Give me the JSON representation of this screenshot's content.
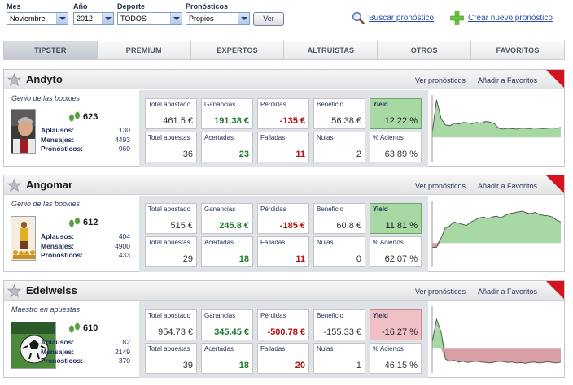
{
  "filters": {
    "mes": {
      "label": "Mes",
      "value": "Noviembre"
    },
    "ano": {
      "label": "Año",
      "value": "2012"
    },
    "deporte": {
      "label": "Deporte",
      "value": "TODOS"
    },
    "pronosticos": {
      "label": "Pronósticos",
      "value": "Propios"
    },
    "ver_label": "Ver"
  },
  "actions": {
    "buscar": "Buscar pronóstico",
    "crear": "Crear nuevo pronóstico"
  },
  "tabs": [
    "TIPSTER",
    "PREMIUM",
    "EXPERTOS",
    "ALTRUISTAS",
    "OTROS",
    "FAVORITOS"
  ],
  "active_tab": "TIPSTER",
  "card_links": {
    "ver": "Ver pronósticos",
    "fav": "Añadir a Favoritos"
  },
  "stat_labels": {
    "total_apostado": "Total apostado",
    "ganancias": "Ganancias",
    "perdidas": "Pérdidas",
    "beneficio": "Beneficio",
    "yield": "Yield",
    "total_apuestas": "Total apuestas",
    "acertadas": "Acertadas",
    "falladas": "Falladas",
    "nulas": "Nulas",
    "aciertos": "% Aciertos"
  },
  "mini_labels": {
    "aplausos": "Aplausos:",
    "mensajes": "Mensajes:",
    "pronosticos": "Pronósticos:"
  },
  "colors": {
    "positive": "#1d7a30",
    "negative": "#b01010",
    "yield_pos_bg": "#a8d8a4",
    "yield_neg_bg": "#f0c0c4",
    "corner_red": "#d4141c"
  },
  "tipsters": [
    {
      "name": "Andyto",
      "tagline": "Genio de las bookies",
      "score": "623",
      "aplausos": "130",
      "mensajes": "4493",
      "pronosticos": "960",
      "total_apostado": "461.5 €",
      "ganancias": "191.38 €",
      "perdidas": "-135 €",
      "beneficio": "56.38 €",
      "yield": "12.22 %",
      "yield_sign": "positive",
      "total_apuestas": "36",
      "acertadas": "23",
      "falladas": "11",
      "nulas": "2",
      "aciertos": "63.89 %",
      "chart_data": {
        "type": "area",
        "values": [
          0.1,
          0.9,
          0.45,
          0.3,
          0.28,
          0.34,
          0.32,
          0.36,
          0.35,
          0.33,
          0.36,
          0.34,
          0.38,
          0.37,
          0.33,
          0.22,
          0.2,
          0.22,
          0.21,
          0.2,
          0.22,
          0.22,
          0.21,
          0.23,
          0.22,
          0.21,
          0.22,
          0.23,
          0.22,
          0.24
        ]
      }
    },
    {
      "name": "Angomar",
      "tagline": "Genio de las bookies",
      "score": "612",
      "aplausos": "404",
      "mensajes": "4900",
      "pronosticos": "433",
      "total_apostado": "515 €",
      "ganancias": "245.8 €",
      "perdidas": "-185 €",
      "beneficio": "60.8 €",
      "yield": "11.81 %",
      "yield_sign": "positive",
      "total_apuestas": "29",
      "acertadas": "18",
      "falladas": "11",
      "nulas": "0",
      "aciertos": "62.07 %",
      "chart_data": {
        "type": "area",
        "values": [
          -0.1,
          -0.1,
          0.1,
          0.35,
          0.4,
          0.5,
          0.48,
          0.45,
          0.42,
          0.5,
          0.55,
          0.6,
          0.62,
          0.58,
          0.62,
          0.64,
          0.6,
          0.66,
          0.7,
          0.72,
          0.74,
          0.76,
          0.72,
          0.7,
          0.73,
          0.68,
          0.66,
          0.65,
          0.62,
          0.55,
          0.5
        ]
      }
    },
    {
      "name": "Edelweiss",
      "tagline": "Maestro en apuestas",
      "score": "610",
      "aplausos": "82",
      "mensajes": "2149",
      "pronosticos": "370",
      "total_apostado": "954.73 €",
      "ganancias": "345.45 €",
      "perdidas": "-500.78 €",
      "beneficio": "-155.33 €",
      "yield": "-16.27 %",
      "yield_sign": "negative",
      "total_apuestas": "39",
      "acertadas": "18",
      "falladas": "20",
      "nulas": "1",
      "aciertos": "46.15 %",
      "chart_data": {
        "type": "area",
        "values": [
          0.15,
          0.7,
          0.4,
          -0.25,
          -0.3,
          -0.28,
          -0.32,
          -0.3,
          -0.33,
          -0.31,
          -0.3,
          -0.32,
          -0.33,
          -0.34,
          -0.32,
          -0.3,
          -0.31,
          -0.33,
          -0.32,
          -0.34,
          -0.33,
          -0.35,
          -0.33,
          -0.32,
          -0.34,
          -0.33,
          -0.31,
          -0.33,
          -0.34,
          -0.32
        ]
      }
    }
  ]
}
